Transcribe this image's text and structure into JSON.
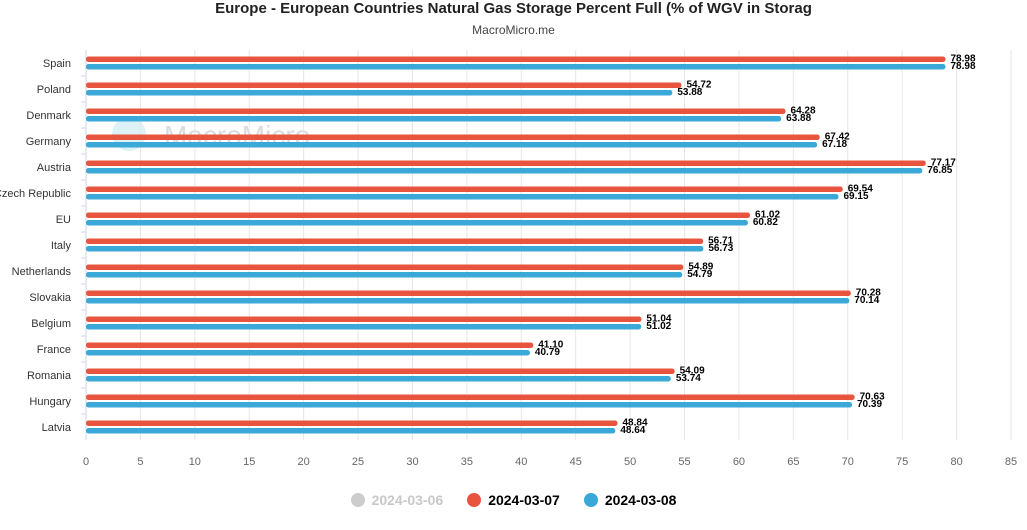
{
  "title": "Europe - European Countries Natural Gas Storage Percent Full (% of WGV in Storag",
  "subtitle": "MacroMicro.me",
  "watermark": "MacroMicro",
  "legend": [
    {
      "label": "2024-03-06",
      "color": "#cccccc",
      "hidden": true
    },
    {
      "label": "2024-03-07",
      "color": "#e8553f",
      "hidden": false
    },
    {
      "label": "2024-03-08",
      "color": "#3ba9d8",
      "hidden": false
    }
  ],
  "chart_data": {
    "type": "bar",
    "orientation": "horizontal",
    "categories": [
      "Spain",
      "Poland",
      "Denmark",
      "Germany",
      "Austria",
      "Czech Republic",
      "EU",
      "Italy",
      "Netherlands",
      "Slovakia",
      "Belgium",
      "France",
      "Romania",
      "Hungary",
      "Latvia"
    ],
    "series": [
      {
        "name": "2024-03-07",
        "color": "#e8553f",
        "values": [
          78.98,
          54.72,
          64.28,
          67.42,
          77.17,
          69.54,
          61.02,
          56.71,
          54.89,
          70.28,
          51.04,
          41.1,
          54.09,
          70.63,
          48.84
        ],
        "labels": [
          "78.98",
          "54.72",
          "64.28",
          "67.42",
          "77.17",
          "69.54",
          "61.02",
          "56.71",
          "54.89",
          "70.28",
          "51.04",
          "41.10",
          "54.09",
          "70.63",
          "48.84"
        ]
      },
      {
        "name": "2024-03-08",
        "color": "#3ba9d8",
        "values": [
          78.98,
          53.88,
          63.88,
          67.18,
          76.85,
          69.15,
          60.82,
          56.73,
          54.79,
          70.14,
          51.02,
          40.79,
          53.74,
          70.39,
          48.64
        ],
        "labels": [
          "78.98",
          "53.88",
          "63.88",
          "67.18",
          "76.85",
          "69.15",
          "60.82",
          "56.73",
          "54.79",
          "70.14",
          "51.02",
          "40.79",
          "53.74",
          "70.39",
          "48.64"
        ]
      }
    ],
    "xlim": [
      0,
      85
    ],
    "xticks": [
      "0",
      "5",
      "10",
      "15",
      "20",
      "25",
      "30",
      "35",
      "40",
      "45",
      "50",
      "55",
      "60",
      "65",
      "70",
      "75",
      "80",
      "85"
    ],
    "grid": "vertical",
    "legend_position": "bottom"
  }
}
